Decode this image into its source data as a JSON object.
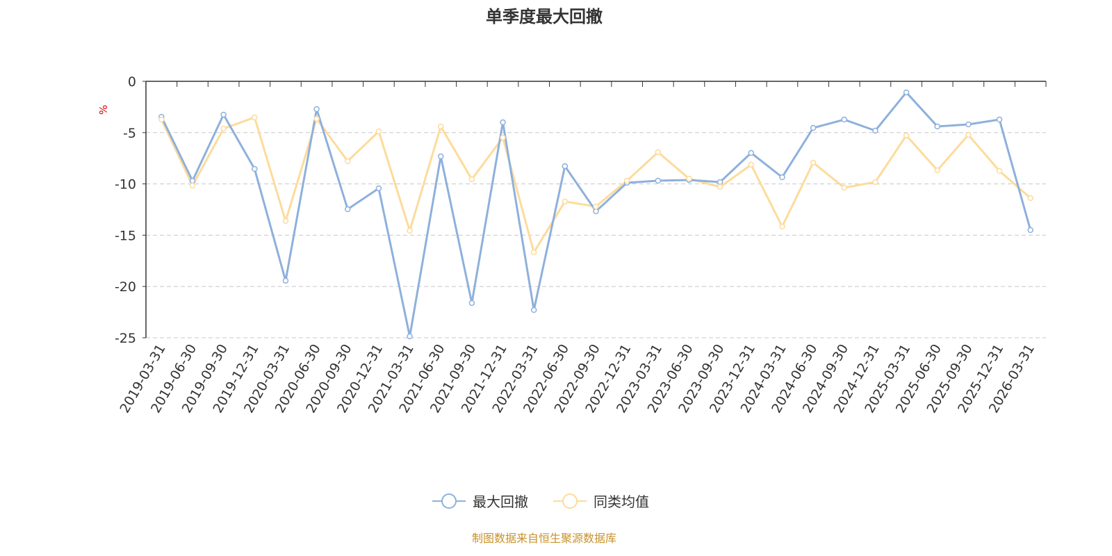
{
  "chart_data": {
    "type": "line",
    "title": "单季度最大回撤",
    "ylabel": "%",
    "xlabel": "",
    "ylim": [
      -25,
      0
    ],
    "yticks": [
      0,
      -5,
      -10,
      -15,
      -20,
      -25
    ],
    "grid": true,
    "legend_position": "bottom",
    "categories": [
      "2019-03-31",
      "2019-06-30",
      "2019-09-30",
      "2019-12-31",
      "2020-03-31",
      "2020-06-30",
      "2020-09-30",
      "2020-12-31",
      "2021-03-31",
      "2021-06-30",
      "2021-09-30",
      "2021-12-31",
      "2022-03-31",
      "2022-06-30",
      "2022-09-30",
      "2022-12-31",
      "2023-03-31",
      "2023-06-30",
      "2023-09-30",
      "2023-12-31",
      "2024-03-31",
      "2024-06-30",
      "2024-09-30",
      "2024-12-31",
      "2025-03-31",
      "2025-06-30",
      "2025-09-30",
      "2025-12-31",
      "2026-03-31"
    ],
    "series": [
      {
        "name": "最大回撤",
        "color": "#8eb0dc",
        "values": [
          -3.46,
          -9.7,
          -3.25,
          -8.54,
          -19.44,
          -2.71,
          -12.47,
          -10.43,
          -24.86,
          -7.32,
          -21.61,
          -4.0,
          -22.29,
          -8.27,
          -12.67,
          -9.89,
          -9.69,
          -9.62,
          -9.82,
          -6.98,
          -9.35,
          -4.54,
          -3.73,
          -4.81,
          -1.08,
          -4.4,
          -4.2,
          -3.73,
          -14.5
        ]
      },
      {
        "name": "同类均值",
        "color": "#fddb9b",
        "values": [
          -3.73,
          -10.16,
          -4.61,
          -3.52,
          -13.62,
          -3.66,
          -7.79,
          -4.88,
          -14.57,
          -4.4,
          -9.55,
          -5.49,
          -16.67,
          -11.72,
          -12.2,
          -9.69,
          -6.91,
          -9.49,
          -10.3,
          -8.13,
          -14.16,
          -7.93,
          -10.37,
          -9.82,
          -5.28,
          -8.67,
          -5.22,
          -8.74,
          -11.38
        ]
      }
    ]
  },
  "footer": "制图数据来自恒生聚源数据库",
  "colors": {
    "footer": "#c8922a",
    "ylabel": "#e00000"
  }
}
